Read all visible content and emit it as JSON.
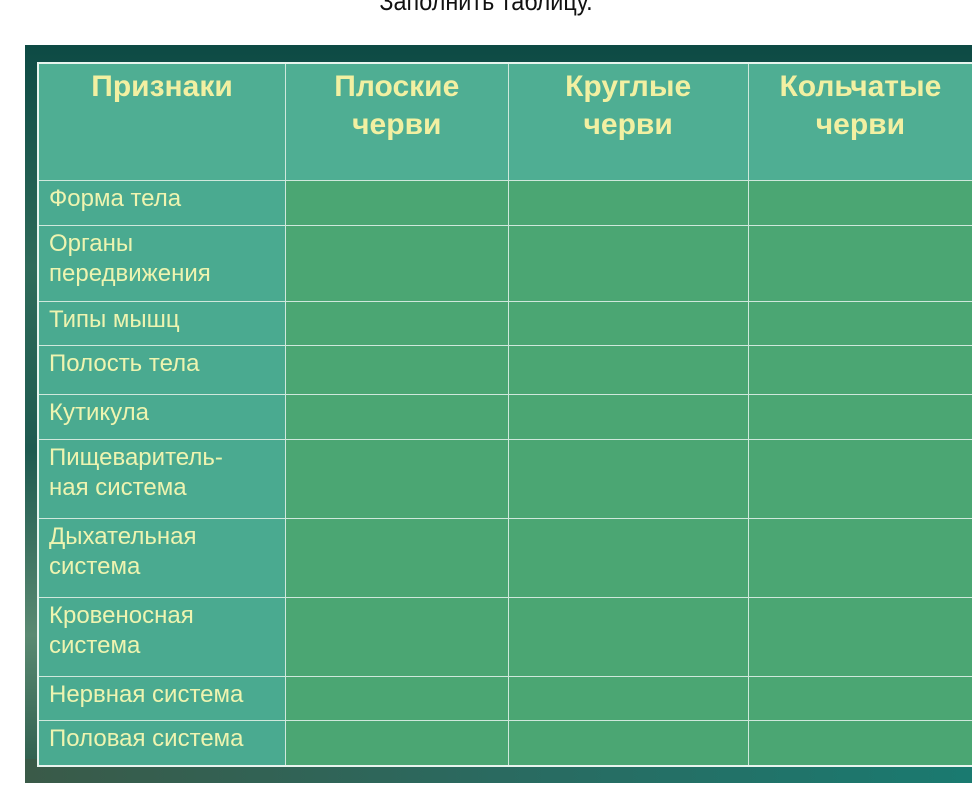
{
  "title": "Заполнить таблицу.",
  "table": {
    "headers": [
      "Признаки",
      "Плоские черви",
      "Круглые черви",
      "Кольчатые черви"
    ],
    "rows": [
      {
        "label": "Форма тела",
        "values": [
          "",
          "",
          ""
        ]
      },
      {
        "label": "Органы передвижения",
        "values": [
          "",
          "",
          ""
        ]
      },
      {
        "label": "Типы мышц",
        "values": [
          "",
          "",
          ""
        ]
      },
      {
        "label": "Полость тела",
        "values": [
          "",
          "",
          ""
        ]
      },
      {
        "label": "Кутикула",
        "values": [
          "",
          "",
          ""
        ]
      },
      {
        "label": "Пищеваритель-ная система",
        "values": [
          "",
          "",
          ""
        ]
      },
      {
        "label": "Дыхательная система",
        "values": [
          "",
          "",
          ""
        ]
      },
      {
        "label": "Кровеносная система",
        "values": [
          "",
          "",
          ""
        ]
      },
      {
        "label": "Нервная система",
        "values": [
          "",
          "",
          ""
        ]
      },
      {
        "label": "Половая система",
        "values": [
          "",
          "",
          ""
        ]
      }
    ]
  },
  "colors": {
    "header_bg": "#4fae93",
    "label_bg": "#4aaa90",
    "cell_bg": "#4ba673",
    "text": "#f2f0a2"
  }
}
